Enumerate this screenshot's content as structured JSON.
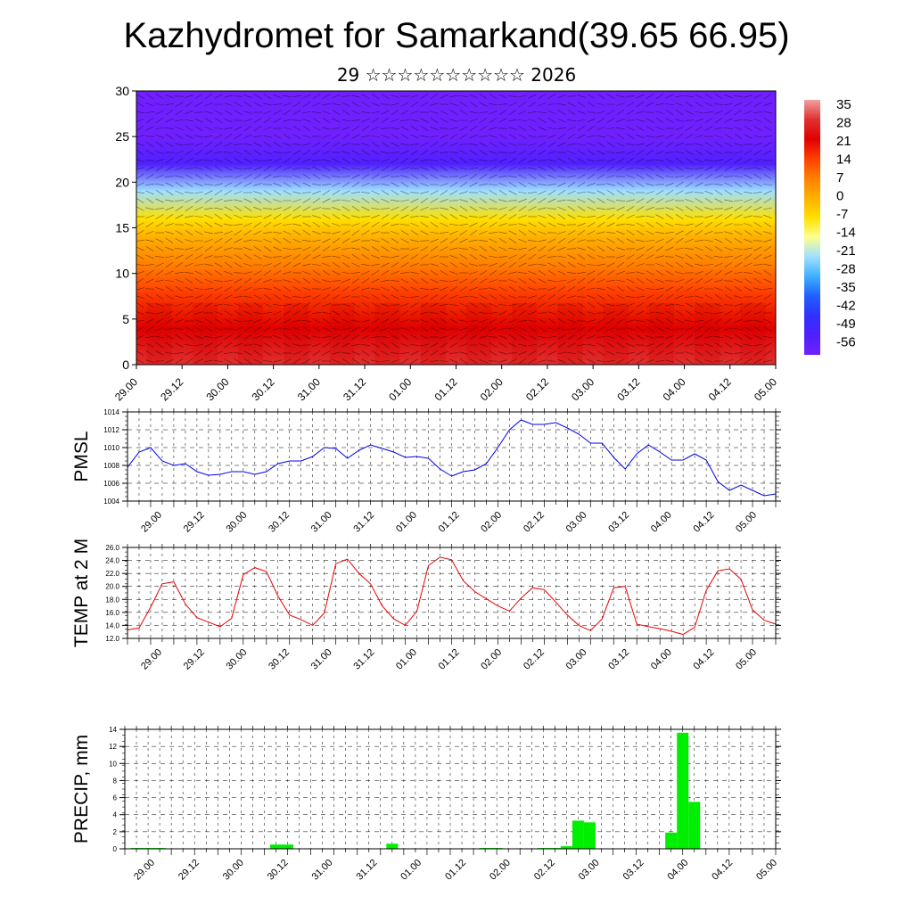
{
  "title": "Kazhydromet for Samarkand(39.65 66.95)",
  "subtitle": "29 ☆☆☆☆☆☆☆☆☆☆ 2026",
  "time_ticks": [
    "29.00",
    "29.12",
    "30.00",
    "30.12",
    "31.00",
    "31.12",
    "01.00",
    "01.12",
    "02.00",
    "02.12",
    "03.00",
    "03.12",
    "04.00",
    "04.12",
    "05.00"
  ],
  "colorbar": {
    "labels": [
      "35",
      "28",
      "21",
      "14",
      "7",
      "0",
      "-7",
      "-14",
      "-21",
      "-28",
      "-35",
      "-42",
      "-49",
      "-56"
    ],
    "colors": [
      "#f0a0a0",
      "#e03030",
      "#e00000",
      "#ff4000",
      "#ff8000",
      "#ffb000",
      "#ffe000",
      "#ffff90",
      "#a0e0ff",
      "#40b0ff",
      "#2060ff",
      "#3030ff",
      "#5020ff",
      "#7020ff"
    ]
  },
  "chart_data": [
    {
      "type": "heatmap",
      "title": "",
      "xlabel": "",
      "ylabel": "",
      "ylim": [
        0,
        30
      ],
      "yticks": [
        "0",
        "5",
        "10",
        "15",
        "20",
        "25",
        "30"
      ],
      "value_range": [
        -56,
        35
      ],
      "profile": [
        {
          "level": 0,
          "value": 25
        },
        {
          "level": 4,
          "value": 18
        },
        {
          "level": 8,
          "value": 12
        },
        {
          "level": 11,
          "value": 8
        },
        {
          "level": 14,
          "value": 0
        },
        {
          "level": 16,
          "value": -9
        },
        {
          "level": 19,
          "value": -22
        },
        {
          "level": 22,
          "value": -48
        },
        {
          "level": 25,
          "value": -56
        },
        {
          "level": 30,
          "value": -56
        }
      ]
    },
    {
      "type": "line",
      "ylabel": "PMSL",
      "ylim": [
        1004,
        1014
      ],
      "yticks": [
        "1004",
        "1006",
        "1008",
        "1010",
        "1012",
        "1014"
      ],
      "series": [
        {
          "color": "#0000ee",
          "x": [
            0,
            3,
            6,
            9,
            12,
            15,
            18,
            21,
            24,
            27,
            30,
            33,
            36,
            39,
            42,
            45,
            48,
            51,
            54,
            57,
            60,
            63,
            66,
            69,
            72,
            75,
            78,
            81,
            84,
            87,
            90,
            93,
            96,
            99,
            102,
            105,
            108,
            111,
            114,
            117,
            120,
            123,
            126,
            129,
            132,
            135,
            138,
            141,
            144,
            147,
            150,
            153,
            156,
            159,
            162,
            165,
            168
          ],
          "values": [
            1007.8,
            1009.5,
            1010.0,
            1008.5,
            1008.0,
            1008.2,
            1007.3,
            1006.9,
            1007.0,
            1007.3,
            1007.3,
            1007.0,
            1007.3,
            1008.2,
            1008.5,
            1008.5,
            1009.0,
            1010.0,
            1009.9,
            1008.8,
            1009.7,
            1010.3,
            1009.9,
            1009.5,
            1008.9,
            1009.0,
            1008.8,
            1007.6,
            1006.8,
            1007.3,
            1007.5,
            1008.2,
            1010.0,
            1012.0,
            1013.1,
            1012.6,
            1012.6,
            1012.8,
            1012.2,
            1011.5,
            1010.5,
            1010.5,
            1008.9,
            1007.6,
            1009.3,
            1010.3,
            1009.5,
            1008.6,
            1008.6,
            1009.3,
            1008.6,
            1006.2,
            1005.2,
            1005.8,
            1005.2,
            1004.6,
            1004.8
          ]
        }
      ]
    },
    {
      "type": "line",
      "ylabel": "TEMP at 2 M",
      "ylim": [
        12,
        26
      ],
      "yticks": [
        "12.0",
        "14.0",
        "16.0",
        "18.0",
        "20.0",
        "22.0",
        "24.0",
        "26.0"
      ],
      "series": [
        {
          "color": "#ee0000",
          "x": [
            0,
            3,
            6,
            9,
            12,
            15,
            18,
            21,
            24,
            27,
            30,
            33,
            36,
            39,
            42,
            45,
            48,
            51,
            54,
            57,
            60,
            63,
            66,
            69,
            72,
            75,
            78,
            81,
            84,
            87,
            90,
            93,
            96,
            99,
            102,
            105,
            108,
            111,
            114,
            117,
            120,
            123,
            126,
            129,
            132,
            135,
            138,
            141,
            144,
            147,
            150,
            153,
            156,
            159,
            162,
            165,
            168
          ],
          "values": [
            13.3,
            13.6,
            16.8,
            20.4,
            20.7,
            17.3,
            15.2,
            14.5,
            13.8,
            15.1,
            21.8,
            22.9,
            22.3,
            18.5,
            15.6,
            14.9,
            14.0,
            15.9,
            23.5,
            24.2,
            22.0,
            20.4,
            17.0,
            15.0,
            14.0,
            16.2,
            23.2,
            24.5,
            24.1,
            20.9,
            19.2,
            18.1,
            17.0,
            16.2,
            18.2,
            19.8,
            19.5,
            17.6,
            15.6,
            14.0,
            13.2,
            15.0,
            19.8,
            20.0,
            14.2,
            13.8,
            13.5,
            13.1,
            12.6,
            13.7,
            19.4,
            22.4,
            22.7,
            21.1,
            16.4,
            14.8,
            14.2
          ]
        }
      ]
    },
    {
      "type": "bar",
      "ylabel": "PRECIP, mm",
      "ylim": [
        0,
        14
      ],
      "yticks": [
        "0",
        "2",
        "4",
        "6",
        "8",
        "10",
        "12",
        "14"
      ],
      "series": [
        {
          "color": "#00ee00",
          "x": [
            0,
            3,
            6,
            9,
            12,
            15,
            18,
            21,
            24,
            27,
            30,
            33,
            36,
            39,
            42,
            45,
            48,
            51,
            54,
            57,
            60,
            63,
            66,
            69,
            72,
            75,
            78,
            81,
            84,
            87,
            90,
            93,
            96,
            99,
            102,
            105,
            108,
            111,
            114,
            117,
            120,
            123,
            126,
            129,
            132,
            135,
            138,
            141,
            144,
            147,
            150,
            153,
            156,
            159,
            162,
            165,
            168
          ],
          "values": [
            0,
            0.1,
            0.1,
            0.1,
            0,
            0,
            0,
            0,
            0,
            0,
            0,
            0,
            0,
            0.5,
            0.5,
            0,
            0,
            0,
            0,
            0,
            0,
            0,
            0,
            0.6,
            0,
            0,
            0,
            0,
            0,
            0,
            0,
            0.1,
            0.1,
            0,
            0,
            0,
            0.1,
            0.1,
            0.3,
            3.3,
            3.1,
            0,
            0,
            0,
            0,
            0,
            0,
            1.9,
            13.6,
            5.5,
            0,
            0,
            0,
            0,
            0,
            0,
            0
          ]
        }
      ]
    }
  ]
}
